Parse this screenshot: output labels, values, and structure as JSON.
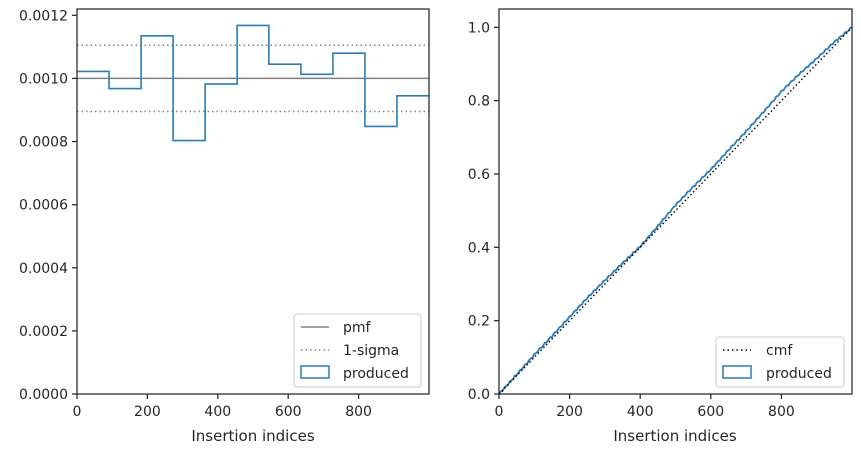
{
  "chart_data": [
    {
      "type": "line",
      "subtype": "step-histogram",
      "xlabel": "Insertion indices",
      "ylabel": "",
      "xlim": [
        0,
        1000
      ],
      "ylim": [
        0,
        0.00122
      ],
      "x_ticks": [
        0,
        200,
        400,
        600,
        800
      ],
      "x_tick_labels": [
        "0",
        "200",
        "400",
        "600",
        "800"
      ],
      "y_ticks": [
        0,
        0.0002,
        0.0004,
        0.0006,
        0.0008,
        0.001,
        0.0012
      ],
      "y_tick_labels": [
        "0.0000",
        "0.0002",
        "0.0004",
        "0.0006",
        "0.0008",
        "0.0010",
        "0.0012"
      ],
      "grid": false,
      "legend_placement": "lower-right",
      "bin_edges": [
        0,
        91,
        182,
        273,
        364,
        455,
        545,
        636,
        727,
        818,
        909,
        1000
      ],
      "series": [
        {
          "name": "produced",
          "kind": "step",
          "color": "#2b7bb9",
          "values": [
            0.001022,
            0.000968,
            0.001135,
            0.000803,
            0.000982,
            0.001168,
            0.001045,
            0.001013,
            0.00108,
            0.000848,
            0.000945
          ]
        }
      ],
      "reference_lines": [
        {
          "name": "pmf",
          "y": 0.001,
          "style": "solid",
          "color": "#808080"
        },
        {
          "name": "1-sigma",
          "y": [
            0.001105,
            0.000895
          ],
          "style": "dotted",
          "color": "#808080"
        }
      ],
      "legend": [
        {
          "label": "pmf",
          "style": "solid-line",
          "color": "#808080"
        },
        {
          "label": "1-sigma",
          "style": "dotted-line",
          "color": "#808080"
        },
        {
          "label": "produced",
          "style": "box",
          "color": "#2b7bb9"
        }
      ]
    },
    {
      "type": "line",
      "xlabel": "Insertion indices",
      "ylabel": "",
      "xlim": [
        0,
        1000
      ],
      "ylim": [
        0,
        1.05
      ],
      "x_ticks": [
        0,
        200,
        400,
        600,
        800
      ],
      "x_tick_labels": [
        "0",
        "200",
        "400",
        "600",
        "800"
      ],
      "y_ticks": [
        0,
        0.2,
        0.4,
        0.6,
        0.8,
        1.0
      ],
      "y_tick_labels": [
        "0.0",
        "0.2",
        "0.4",
        "0.6",
        "0.8",
        "1.0"
      ],
      "grid": false,
      "legend_placement": "lower-right",
      "x": [
        0,
        50,
        100,
        150,
        200,
        250,
        300,
        350,
        400,
        450,
        500,
        550,
        600,
        650,
        700,
        750,
        800,
        850,
        900,
        950,
        1000
      ],
      "series": [
        {
          "name": "cmf",
          "style": "dotted",
          "color": "#000000",
          "values": [
            0,
            0.05,
            0.1,
            0.15,
            0.2,
            0.25,
            0.3,
            0.35,
            0.4,
            0.45,
            0.5,
            0.55,
            0.6,
            0.65,
            0.7,
            0.75,
            0.8,
            0.85,
            0.9,
            0.95,
            1.0
          ]
        },
        {
          "name": "produced",
          "style": "solid",
          "color": "#2b7bb9",
          "values": [
            0,
            0.053,
            0.107,
            0.158,
            0.21,
            0.262,
            0.31,
            0.357,
            0.402,
            0.458,
            0.515,
            0.565,
            0.612,
            0.665,
            0.716,
            0.77,
            0.825,
            0.872,
            0.915,
            0.96,
            1.0
          ]
        }
      ],
      "legend": [
        {
          "label": "cmf",
          "style": "dotted-line",
          "color": "#000000"
        },
        {
          "label": "produced",
          "style": "box",
          "color": "#2b7bb9"
        }
      ]
    }
  ]
}
